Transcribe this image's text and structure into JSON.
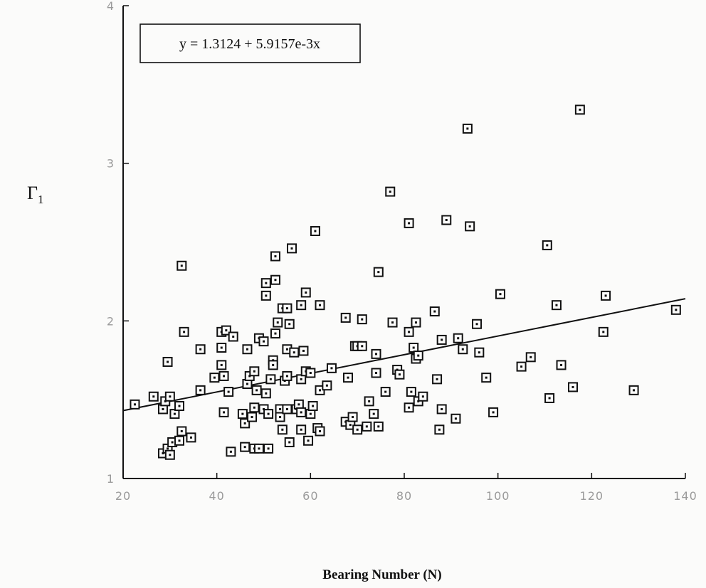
{
  "chart_data": {
    "type": "scatter",
    "title": "",
    "xlabel": "Bearing Number (N)",
    "ylabel": "Γ",
    "ylabel_subscript": "1",
    "xlim": [
      20,
      140
    ],
    "ylim": [
      1,
      4
    ],
    "x_ticks": [
      20,
      40,
      60,
      80,
      100,
      120,
      140
    ],
    "y_ticks": [
      1,
      2,
      3,
      4
    ],
    "grid": false,
    "annotation": "y = 1.3124 + 5.9157e-3x",
    "fit_line": {
      "intercept": 1.3124,
      "slope": 0.0059157
    },
    "marker": "square-dot",
    "points": [
      [
        22.5,
        1.47
      ],
      [
        26.5,
        1.52
      ],
      [
        28.5,
        1.44
      ],
      [
        29,
        1.49
      ],
      [
        30,
        1.52
      ],
      [
        29.5,
        1.74
      ],
      [
        31,
        1.41
      ],
      [
        32,
        1.46
      ],
      [
        32.5,
        2.35
      ],
      [
        33,
        1.93
      ],
      [
        28.5,
        1.16
      ],
      [
        29.5,
        1.19
      ],
      [
        30,
        1.15
      ],
      [
        30.5,
        1.23
      ],
      [
        32,
        1.24
      ],
      [
        32.5,
        1.3
      ],
      [
        34.5,
        1.26
      ],
      [
        36.5,
        1.82
      ],
      [
        36.5,
        1.56
      ],
      [
        39.5,
        1.64
      ],
      [
        41,
        1.93
      ],
      [
        41,
        1.83
      ],
      [
        41,
        1.72
      ],
      [
        41.5,
        1.65
      ],
      [
        42,
        1.94
      ],
      [
        42.5,
        1.55
      ],
      [
        43.5,
        1.9
      ],
      [
        41.5,
        1.42
      ],
      [
        43,
        1.17
      ],
      [
        45.5,
        1.41
      ],
      [
        46,
        1.35
      ],
      [
        46,
        1.2
      ],
      [
        46.5,
        1.6
      ],
      [
        46.5,
        1.82
      ],
      [
        47,
        1.65
      ],
      [
        47.5,
        1.39
      ],
      [
        48,
        1.68
      ],
      [
        48,
        1.45
      ],
      [
        48,
        1.19
      ],
      [
        49,
        1.89
      ],
      [
        48.5,
        1.56
      ],
      [
        49,
        1.19
      ],
      [
        50,
        1.87
      ],
      [
        50,
        1.44
      ],
      [
        50.5,
        1.54
      ],
      [
        50.5,
        2.24
      ],
      [
        50.5,
        2.16
      ],
      [
        51,
        1.19
      ],
      [
        51,
        1.41
      ],
      [
        51.5,
        1.63
      ],
      [
        52,
        1.75
      ],
      [
        52,
        1.72
      ],
      [
        52.5,
        1.92
      ],
      [
        52.5,
        2.41
      ],
      [
        52.5,
        2.26
      ],
      [
        53,
        1.99
      ],
      [
        53.5,
        1.44
      ],
      [
        53.5,
        1.39
      ],
      [
        54,
        2.08
      ],
      [
        54,
        1.31
      ],
      [
        54.5,
        1.62
      ],
      [
        55,
        1.82
      ],
      [
        55,
        1.65
      ],
      [
        55,
        2.08
      ],
      [
        55,
        1.44
      ],
      [
        55.5,
        1.23
      ],
      [
        55.5,
        1.98
      ],
      [
        56,
        2.46
      ],
      [
        56.5,
        1.8
      ],
      [
        57,
        1.44
      ],
      [
        57.5,
        1.47
      ],
      [
        58,
        1.42
      ],
      [
        58,
        1.31
      ],
      [
        58,
        2.1
      ],
      [
        58,
        1.63
      ],
      [
        58.5,
        1.81
      ],
      [
        59,
        2.18
      ],
      [
        59,
        1.68
      ],
      [
        59.5,
        1.24
      ],
      [
        60,
        1.67
      ],
      [
        60,
        1.41
      ],
      [
        60.5,
        1.46
      ],
      [
        61,
        2.57
      ],
      [
        61.5,
        1.32
      ],
      [
        62,
        1.56
      ],
      [
        62,
        2.1
      ],
      [
        62,
        1.3
      ],
      [
        63.5,
        1.59
      ],
      [
        64.5,
        1.7
      ],
      [
        67.5,
        2.02
      ],
      [
        67.5,
        1.36
      ],
      [
        68,
        1.64
      ],
      [
        68.5,
        1.34
      ],
      [
        69,
        1.39
      ],
      [
        69.5,
        1.84
      ],
      [
        70,
        1.31
      ],
      [
        70,
        1.84
      ],
      [
        71,
        2.01
      ],
      [
        71,
        1.84
      ],
      [
        72,
        1.33
      ],
      [
        72.5,
        1.49
      ],
      [
        73.5,
        1.41
      ],
      [
        74,
        1.67
      ],
      [
        74,
        1.79
      ],
      [
        74.5,
        2.31
      ],
      [
        74.5,
        1.33
      ],
      [
        76,
        1.55
      ],
      [
        77,
        2.82
      ],
      [
        77.5,
        1.99
      ],
      [
        78.5,
        1.69
      ],
      [
        79,
        1.66
      ],
      [
        81,
        1.93
      ],
      [
        81,
        1.45
      ],
      [
        81,
        2.62
      ],
      [
        81.5,
        1.55
      ],
      [
        82,
        1.83
      ],
      [
        82.5,
        1.76
      ],
      [
        82.5,
        1.99
      ],
      [
        83,
        1.49
      ],
      [
        83,
        1.78
      ],
      [
        84,
        1.52
      ],
      [
        86.5,
        2.06
      ],
      [
        87,
        1.63
      ],
      [
        87.5,
        1.31
      ],
      [
        88,
        1.88
      ],
      [
        88,
        1.44
      ],
      [
        89,
        2.64
      ],
      [
        91,
        1.38
      ],
      [
        91.5,
        1.89
      ],
      [
        92.5,
        1.82
      ],
      [
        93.5,
        3.22
      ],
      [
        94,
        2.6
      ],
      [
        95.5,
        1.98
      ],
      [
        96,
        1.8
      ],
      [
        97.5,
        1.64
      ],
      [
        99,
        1.42
      ],
      [
        100.5,
        2.17
      ],
      [
        105,
        1.71
      ],
      [
        107,
        1.77
      ],
      [
        110.5,
        2.48
      ],
      [
        111,
        1.51
      ],
      [
        112.5,
        2.1
      ],
      [
        113.5,
        1.72
      ],
      [
        116,
        1.58
      ],
      [
        117.5,
        3.34
      ],
      [
        122.5,
        1.93
      ],
      [
        123,
        2.16
      ],
      [
        129,
        1.56
      ],
      [
        138,
        2.07
      ]
    ]
  }
}
